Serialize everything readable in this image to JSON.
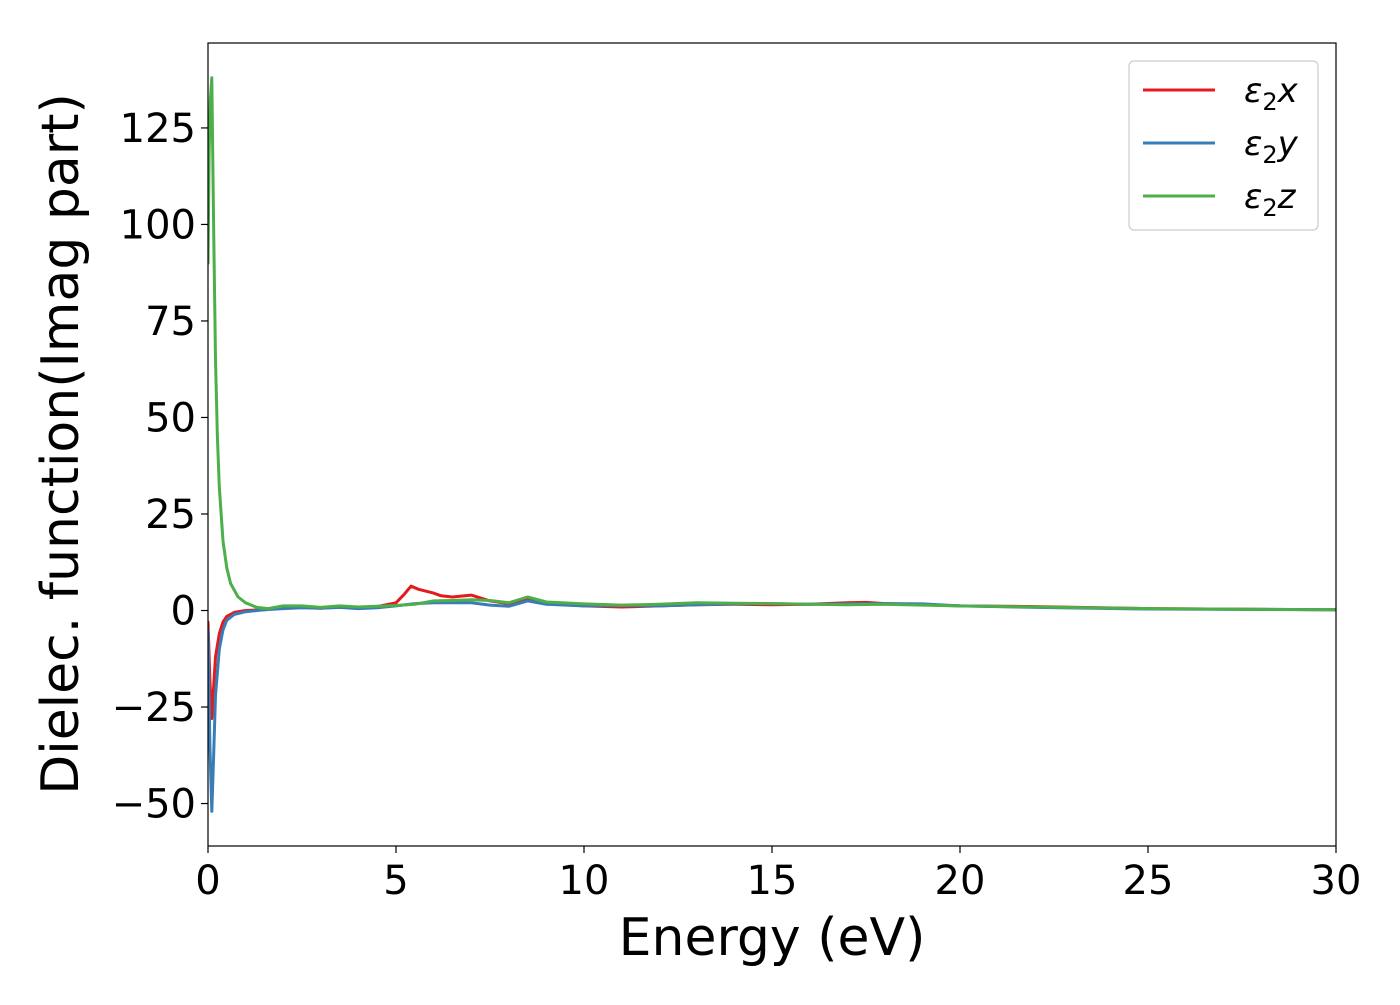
{
  "chart_data": {
    "type": "line",
    "xlabel": "Energy (eV)",
    "ylabel": "Dielec. function(Imag part)",
    "xlim": [
      0,
      30
    ],
    "ylim": [
      -61,
      147
    ],
    "x_ticks": [
      0,
      5,
      10,
      15,
      20,
      25,
      30
    ],
    "x_tick_labels": [
      "0",
      "5",
      "10",
      "15",
      "20",
      "25",
      "30"
    ],
    "y_ticks": [
      -50,
      -25,
      0,
      25,
      50,
      75,
      100,
      125
    ],
    "y_tick_labels": [
      "−50",
      "−25",
      "0",
      "25",
      "50",
      "75",
      "100",
      "125"
    ],
    "grid": false,
    "legend_position": "top-right",
    "series": [
      {
        "name": "ε₂x",
        "name_base": "ε",
        "name_sub": "2",
        "name_suffix": "x",
        "color": "#e41a1c",
        "x": [
          0,
          0.05,
          0.1,
          0.15,
          0.2,
          0.3,
          0.4,
          0.5,
          0.7,
          1.0,
          1.5,
          2.0,
          2.5,
          3.0,
          3.5,
          4.0,
          4.5,
          5.0,
          5.2,
          5.4,
          5.6,
          5.8,
          6.0,
          6.2,
          6.5,
          7.0,
          7.5,
          8.0,
          8.5,
          9.0,
          10.0,
          11.0,
          12.0,
          13.0,
          14.0,
          15.0,
          16.0,
          17.0,
          17.5,
          18.0,
          19.0,
          20.0,
          22.0,
          25.0,
          30.0
        ],
        "y": [
          -3,
          -18,
          -28,
          -20,
          -12,
          -6,
          -3,
          -1.5,
          -0.5,
          0,
          0.2,
          0.8,
          0.8,
          0.6,
          1.0,
          0.8,
          1.0,
          2.0,
          4.0,
          6.3,
          5.5,
          5.0,
          4.5,
          3.8,
          3.5,
          4.0,
          2.5,
          1.8,
          2.8,
          1.8,
          1.2,
          0.9,
          1.2,
          1.5,
          1.6,
          1.5,
          1.6,
          2.0,
          2.1,
          1.8,
          1.5,
          1.2,
          1.0,
          0.5,
          0.2
        ]
      },
      {
        "name": "ε₂y",
        "name_base": "ε",
        "name_sub": "2",
        "name_suffix": "y",
        "color": "#377eb8",
        "x": [
          0,
          0.05,
          0.1,
          0.15,
          0.2,
          0.3,
          0.4,
          0.5,
          0.7,
          1.0,
          1.5,
          2.0,
          2.5,
          3.0,
          3.5,
          4.0,
          4.5,
          5.0,
          5.5,
          6.0,
          6.5,
          7.0,
          7.5,
          8.0,
          8.5,
          9.0,
          10.0,
          11.0,
          12.0,
          13.0,
          14.0,
          15.0,
          16.0,
          17.0,
          18.0,
          19.0,
          20.0,
          22.0,
          25.0,
          30.0
        ],
        "y": [
          -5,
          -35,
          -52,
          -38,
          -22,
          -10,
          -5,
          -2.5,
          -1,
          -0.3,
          0.2,
          0.5,
          0.7,
          0.6,
          0.8,
          0.5,
          0.7,
          1.2,
          1.8,
          2.0,
          2.0,
          2.0,
          1.4,
          1.1,
          2.5,
          1.6,
          1.2,
          1.3,
          1.2,
          1.5,
          1.7,
          1.8,
          1.6,
          1.7,
          1.8,
          1.7,
          1.2,
          0.8,
          0.4,
          0.2
        ]
      },
      {
        "name": "ε₂z",
        "name_base": "ε",
        "name_sub": "2",
        "name_suffix": "z",
        "color": "#4daf4a",
        "x": [
          0,
          0.03,
          0.06,
          0.1,
          0.15,
          0.2,
          0.25,
          0.3,
          0.4,
          0.5,
          0.6,
          0.8,
          1.0,
          1.3,
          1.6,
          2.0,
          2.5,
          3.0,
          3.5,
          4.0,
          4.5,
          5.0,
          5.5,
          6.0,
          6.5,
          7.0,
          7.5,
          8.0,
          8.5,
          9.0,
          10.0,
          11.0,
          12.0,
          13.0,
          14.0,
          15.0,
          16.0,
          17.0,
          18.0,
          19.0,
          20.0,
          22.0,
          25.0,
          30.0
        ],
        "y": [
          90,
          118,
          132,
          138,
          100,
          65,
          45,
          32,
          18,
          11,
          7,
          3.5,
          2,
          0.8,
          0.5,
          1.2,
          1.2,
          0.8,
          1.2,
          0.9,
          1.1,
          1.3,
          1.6,
          2.5,
          2.6,
          2.8,
          2.6,
          2.0,
          3.5,
          2.2,
          1.7,
          1.4,
          1.6,
          2.0,
          1.9,
          1.8,
          1.6,
          1.5,
          1.6,
          1.4,
          1.2,
          0.9,
          0.5,
          0.2
        ]
      }
    ]
  }
}
